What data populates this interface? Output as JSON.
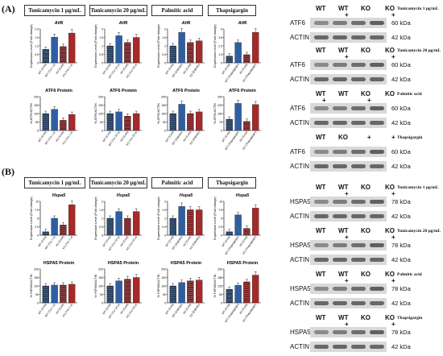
{
  "panels": {
    "A": "(A)",
    "B": "(B)"
  },
  "conditions": [
    "Tunicamycin 1 μg/mL",
    "Tunicamycin 20 μg/mL",
    "Palmitic acid",
    "Thapsigargin"
  ],
  "rows": {
    "A1": {
      "title": "Atf6",
      "ylabel": "Expression Level (Fold change)"
    },
    "A2": {
      "title": "ATF6 Protein",
      "ylabel": "% ATF6/ACTIN"
    },
    "B1": {
      "title": "Hspa5",
      "ylabel": "Expression Level (Fold change)"
    },
    "B2": {
      "title": "HSPA5 Protein",
      "ylabel": "% HSPA5/ACTIN"
    }
  },
  "x_labels": [
    [
      "WT (Cont)",
      "WT (Tun 1 μ)",
      "KO (Cont)",
      "KO (Tun 1 μ)"
    ],
    [
      "WT (Cont)",
      "WT (Tun 20 μ)",
      "KO (Cont)",
      "KO (Tun 20 μ)"
    ],
    [
      "WT (Cont)",
      "WT (Palmitic)",
      "KO (Cont)",
      "KO (Palmitic)"
    ],
    [
      "WT (Cont)",
      "WT (Thapsigargin)",
      "KO (Cont)",
      "KO (Thapsigargin)"
    ]
  ],
  "chart_data": [
    {
      "type": "bar",
      "row": "A1",
      "title": "Atf6",
      "categories": [
        "WT (Cont)",
        "WT (Tun 1 μ)",
        "KO (Cont)",
        "KO (Tun 1 μ)"
      ],
      "values": [
        1.0,
        1.9,
        1.2,
        2.2
      ],
      "ylim": [
        0,
        2.5
      ]
    },
    {
      "type": "bar",
      "row": "A1",
      "title": "Atf6",
      "categories": [
        "WT (Cont)",
        "WT (Tun 20 μ)",
        "KO (Cont)",
        "KO (Tun 20 μ)"
      ],
      "values": [
        1.0,
        1.6,
        1.2,
        1.5
      ],
      "ylim": [
        0,
        2.0
      ]
    },
    {
      "type": "bar",
      "row": "A1",
      "title": "Atf6",
      "categories": [
        "WT (Cont)",
        "WT (Palmitic)",
        "KO (Cont)",
        "KO (Palmitic)"
      ],
      "values": [
        1.0,
        1.8,
        1.2,
        1.3
      ],
      "ylim": [
        0,
        2.0
      ]
    },
    {
      "type": "bar",
      "row": "A1",
      "title": "Atf6",
      "categories": [
        "WT (Cont)",
        "WT (Thapsigargin)",
        "KO (Cont)",
        "KO (Thapsigargin)"
      ],
      "values": [
        1.0,
        3.0,
        1.2,
        4.5
      ],
      "ylim": [
        0,
        5
      ]
    },
    {
      "type": "bar",
      "row": "A2",
      "title": "ATF6 Protein",
      "categories": [
        "WT (Cont)",
        "WT (Tun 1 μ)",
        "KO (Cont)",
        "KO (Tun 1 μ)"
      ],
      "values": [
        100,
        125,
        60,
        95
      ],
      "ylim": [
        0,
        200
      ]
    },
    {
      "type": "bar",
      "row": "A2",
      "title": "ATF6 Protein",
      "categories": [
        "WT (Cont)",
        "WT (Tun 20 μ)",
        "KO (Cont)",
        "KO (Tun 20 μ)"
      ],
      "values": [
        100,
        110,
        85,
        100
      ],
      "ylim": [
        0,
        200
      ]
    },
    {
      "type": "bar",
      "row": "A2",
      "title": "ATF6 Protein",
      "categories": [
        "WT (Cont)",
        "WT (Palmitic)",
        "KO (Cont)",
        "KO (Palmitic)"
      ],
      "values": [
        100,
        155,
        100,
        110
      ],
      "ylim": [
        0,
        200
      ]
    },
    {
      "type": "bar",
      "row": "A2",
      "title": "ATF6 Protein",
      "categories": [
        "WT (Cont)",
        "WT (Thapsigargin)",
        "KO (Cont)",
        "KO (Thapsigargin)"
      ],
      "values": [
        100,
        240,
        80,
        230
      ],
      "ylim": [
        0,
        300
      ]
    },
    {
      "type": "bar",
      "row": "B1",
      "title": "Hspa5",
      "categories": [
        "WT (Cont)",
        "WT (Tun 1 μ)",
        "KO (Cont)",
        "KO (Tun 1 μ)"
      ],
      "values": [
        1.0,
        5.0,
        3.0,
        9.0
      ],
      "ylim": [
        0,
        10
      ]
    },
    {
      "type": "bar",
      "row": "B1",
      "title": "Hspa5",
      "categories": [
        "WT (Cont)",
        "WT (Tun 20 μ)",
        "KO (Cont)",
        "KO (Tun 20 μ)"
      ],
      "values": [
        1.0,
        1.4,
        1.0,
        1.4
      ],
      "ylim": [
        0,
        2.0
      ]
    },
    {
      "type": "bar",
      "row": "B1",
      "title": "Hspa5",
      "categories": [
        "WT (Cont)",
        "WT (Palmitic)",
        "KO (Cont)",
        "KO (Palmitic)"
      ],
      "values": [
        1.0,
        1.7,
        1.5,
        1.5
      ],
      "ylim": [
        0,
        2.0
      ]
    },
    {
      "type": "bar",
      "row": "B1",
      "title": "Hspa5",
      "categories": [
        "WT (Cont)",
        "WT (Thapsigargin)",
        "KO (Cont)",
        "KO (Thapsigargin)"
      ],
      "values": [
        1.0,
        6.0,
        2.0,
        8.0
      ],
      "ylim": [
        0,
        10
      ]
    },
    {
      "type": "bar",
      "row": "B2",
      "title": "HSPA5 Protein",
      "categories": [
        "WT (Cont)",
        "WT (Tun 1 μ)",
        "KO (Cont)",
        "KO (Tun 1 μ)"
      ],
      "values": [
        100,
        105,
        105,
        110
      ],
      "ylim": [
        0,
        200
      ]
    },
    {
      "type": "bar",
      "row": "B2",
      "title": "HSPA5 Protein",
      "categories": [
        "WT (Cont)",
        "WT (Tun 20 μ)",
        "KO (Cont)",
        "KO (Tun 20 μ)"
      ],
      "values": [
        100,
        130,
        140,
        150
      ],
      "ylim": [
        0,
        200
      ]
    },
    {
      "type": "bar",
      "row": "B2",
      "title": "HSPA5 Protein",
      "categories": [
        "WT (Cont)",
        "WT (Palmitic)",
        "KO (Cont)",
        "KO (Palmitic)"
      ],
      "values": [
        100,
        120,
        130,
        135
      ],
      "ylim": [
        0,
        200
      ]
    },
    {
      "type": "bar",
      "row": "B2",
      "title": "HSPA5 Protein",
      "categories": [
        "WT (Cont)",
        "WT (Thapsigargin)",
        "KO (Cont)",
        "KO (Thapsigargin)"
      ],
      "values": [
        100,
        130,
        155,
        205
      ],
      "ylim": [
        0,
        250
      ]
    }
  ],
  "bar_colors": [
    "#1f3b5c",
    "#2e5fa3",
    "#7d1b1b",
    "#a52a2a"
  ],
  "blots": [
    {
      "cols": [
        "WT",
        "WT",
        "KO",
        "KO"
      ],
      "signs": [
        "",
        "+",
        "",
        "+"
      ],
      "condition": "Tunicamycin 1 μg/mL",
      "rows": [
        {
          "label": "ATF6",
          "kda": "60 kDa"
        },
        {
          "label": "ACTIN",
          "kda": "42 kDa"
        }
      ]
    },
    {
      "cols": [
        "WT",
        "WT",
        "KO",
        "KO"
      ],
      "signs": [
        "",
        "+",
        "",
        "+"
      ],
      "condition": "Tunicamycin 20 μg/mL",
      "rows": [
        {
          "label": "ATF6",
          "kda": "60 kDa"
        },
        {
          "label": "ACTIN",
          "kda": "42 kDa"
        }
      ]
    },
    {
      "cols": [
        "WT",
        "WT",
        "KO",
        "KO"
      ],
      "signs": [
        "+",
        "",
        "+",
        ""
      ],
      "condition": "Palmitic acid",
      "rows": [
        {
          "label": "ATF6",
          "kda": "60 kDa"
        },
        {
          "label": "ACTIN",
          "kda": "42 kDa"
        }
      ]
    },
    {
      "cols": [
        "WT",
        "KO",
        "",
        ""
      ],
      "signs": [
        "",
        "",
        "+",
        "+"
      ],
      "condition": "Thapsigargin",
      "rows": [
        {
          "label": "ATF6",
          "kda": "60 kDa"
        },
        {
          "label": "ACTIN",
          "kda": "42 kDa"
        }
      ]
    },
    {
      "cols": [
        "WT",
        "WT",
        "KO",
        "KO"
      ],
      "signs": [
        "",
        "+",
        "",
        "+"
      ],
      "condition": "Tunicamycin 1 μg/mL",
      "rows": [
        {
          "label": "HSPA5",
          "kda": "78 kDa"
        },
        {
          "label": "ACTIN",
          "kda": "42 kDa"
        }
      ]
    },
    {
      "cols": [
        "WT",
        "WT",
        "KO",
        "KO"
      ],
      "signs": [
        "",
        "+",
        "",
        "+"
      ],
      "condition": "Tunicamycin 20 μg/mL",
      "rows": [
        {
          "label": "HSPA5",
          "kda": "78 kDa"
        },
        {
          "label": "ACTIN",
          "kda": "42 kDa"
        }
      ]
    },
    {
      "cols": [
        "WT",
        "WT",
        "KO",
        "KO"
      ],
      "signs": [
        "",
        "+",
        "",
        "+"
      ],
      "condition": "Palmitic acid",
      "rows": [
        {
          "label": "HSPA5",
          "kda": "78 kDa"
        },
        {
          "label": "ACTIN",
          "kda": "42 kDa"
        }
      ]
    },
    {
      "cols": [
        "WT",
        "WT",
        "KO",
        "KO"
      ],
      "signs": [
        "",
        "+",
        "",
        "+"
      ],
      "condition": "Thapsigargin",
      "rows": [
        {
          "label": "HSPA5",
          "kda": "78 kDa"
        },
        {
          "label": "ACTIN",
          "kda": "42 kDa"
        }
      ]
    }
  ]
}
